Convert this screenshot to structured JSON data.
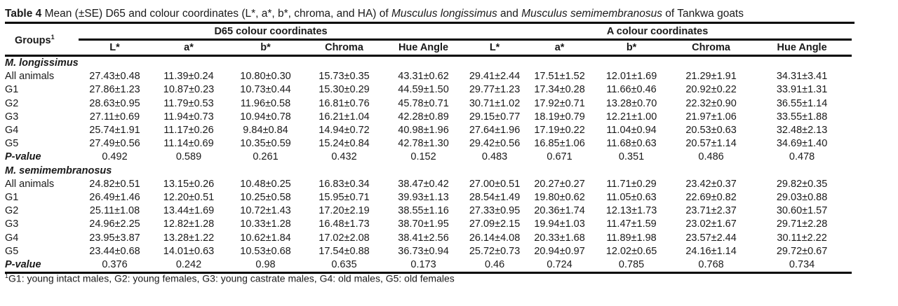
{
  "title": {
    "label": "Table 4",
    "text_1": " Mean (±SE) D65 and colour coordinates (L*, a*, b*, chroma, and HA) of ",
    "species_1": "Musculus longissimus",
    "text_2": " and ",
    "species_2": "Musculus semimembranosus",
    "text_3": " of Tankwa goats"
  },
  "header": {
    "groups": "Groups",
    "groups_sup": "1",
    "group_d65": "D65 colour coordinates",
    "group_a": "A colour coordinates",
    "columns": [
      "L*",
      "a*",
      "b*",
      "Chroma",
      "Hue Angle",
      "L*",
      "a*",
      "b*",
      "Chroma",
      "Hue Angle"
    ]
  },
  "sections": [
    {
      "name": "M. longissimus",
      "rows": [
        {
          "group": "All animals",
          "values": [
            "27.43±0.48",
            "11.39±0.24",
            "10.80±0.30",
            "15.73±0.35",
            "43.31±0.62",
            "29.41±2.44",
            "17.51±1.52",
            "12.01±1.69",
            "21.29±1.91",
            "34.31±3.41"
          ]
        },
        {
          "group": "G1",
          "values": [
            "27.86±1.23",
            "10.87±0.23",
            "10.73±0.44",
            "15.30±0.29",
            "44.59±1.50",
            "29.77±1.23",
            "17.34±0.28",
            "11.66±0.46",
            "20.92±0.22",
            "33.91±1.31"
          ]
        },
        {
          "group": "G2",
          "values": [
            "28.63±0.95",
            "11.79±0.53",
            "11.96±0.58",
            "16.81±0.76",
            "45.78±0.71",
            "30.71±1.02",
            "17.92±0.71",
            "13.28±0.70",
            "22.32±0.90",
            "36.55±1.14"
          ]
        },
        {
          "group": "G3",
          "values": [
            "27.11±0.69",
            "11.94±0.73",
            "10.94±0.78",
            "16.21±1.04",
            "42.28±0.89",
            "29.15±0.77",
            "18.19±0.79",
            "12.21±1.00",
            "21.97±1.06",
            "33.55±1.88"
          ]
        },
        {
          "group": "G4",
          "values": [
            "25.74±1.91",
            "11.17±0.26",
            "9.84±0.84",
            "14.94±0.72",
            "40.98±1.96",
            "27.64±1.96",
            "17.19±0.22",
            "11.04±0.94",
            "20.53±0.63",
            "32.48±2.13"
          ]
        },
        {
          "group": "G5",
          "values": [
            "27.49±0.56",
            "11.14±0.69",
            "10.35±0.59",
            "15.24±0.84",
            "42.78±1.30",
            "29.42±0.56",
            "16.85±1.06",
            "11.68±0.63",
            "20.57±1.14",
            "34.69±1.40"
          ]
        },
        {
          "group": "P-value",
          "values": [
            "0.492",
            "0.589",
            "0.261",
            "0.432",
            "0.152",
            "0.483",
            "0.671",
            "0.351",
            "0.486",
            "0.478"
          ]
        }
      ]
    },
    {
      "name": "M. semimembranosus",
      "rows": [
        {
          "group": "All animals",
          "values": [
            "24.82±0.51",
            "13.15±0.26",
            "10.48±0.25",
            "16.83±0.34",
            "38.47±0.42",
            "27.00±0.51",
            "20.27±0.27",
            "11.71±0.29",
            "23.42±0.37",
            "29.82±0.35"
          ]
        },
        {
          "group": "G1",
          "values": [
            "26.49±1.46",
            "12.20±0.51",
            "10.25±0.58",
            "15.95±0.71",
            "39.93±1.13",
            "28.54±1.49",
            "19.80±0.62",
            "11.05±0.63",
            "22.69±0.82",
            "29.03±0.88"
          ]
        },
        {
          "group": "G2",
          "values": [
            "25.11±1.08",
            "13.44±1.69",
            "10.72±1.43",
            "17.20±2.19",
            "38.55±1.16",
            "27.33±0.95",
            "20.36±1.74",
            "12.13±1.73",
            "23.71±2.37",
            "30.60±1.57"
          ]
        },
        {
          "group": "G3",
          "values": [
            "24.96±2.25",
            "12.82±1.28",
            "10.33±1.28",
            "16.48±1.73",
            "38.70±1.95",
            "27.09±2.15",
            "19.94±1.03",
            "11.47±1.59",
            "23.02±1.67",
            "29.71±2.28"
          ]
        },
        {
          "group": "G4",
          "values": [
            "23.95±3.87",
            "13.28±1.22",
            "10.62±1.84",
            "17.02±2.08",
            "38.41±2.56",
            "26.14±4.08",
            "20.33±1.68",
            "11.89±1.98",
            "23.57±2.44",
            "30.11±2.22"
          ]
        },
        {
          "group": "G5",
          "values": [
            "23.44±0.68",
            "14.01±0.63",
            "10.53±0.68",
            "17.54±0.88",
            "36.73±0.94",
            "25.72±0.73",
            "20.94±0.97",
            "12.02±0.65",
            "24.16±1.14",
            "29.72±0.67"
          ]
        },
        {
          "group": "P-value",
          "values": [
            "0.376",
            "0.242",
            "0.98",
            "0.635",
            "0.173",
            "0.46",
            "0.724",
            "0.785",
            "0.768",
            "0.734"
          ]
        }
      ]
    }
  ],
  "footnote": {
    "sup": "1",
    "text": "G1: young intact males, G2: young females, G3: young castrate males, G4: old males, G5: old females"
  }
}
